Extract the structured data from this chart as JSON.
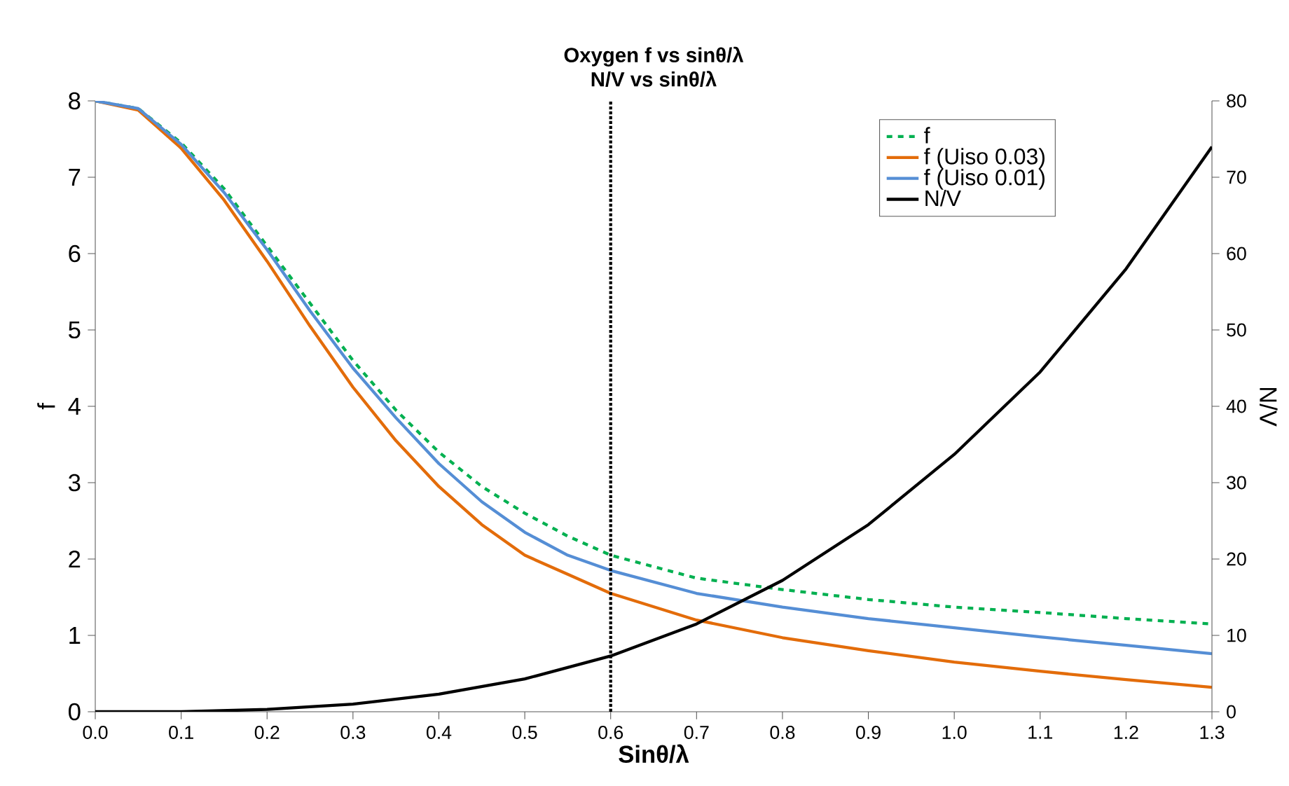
{
  "chart_data": {
    "type": "line",
    "title": "Oxygen f vs sinθ/λ",
    "subtitle": "N/V vs sinθ/λ",
    "xlabel": "Sinθ/λ",
    "ylabel": "f",
    "y2label": "N/V",
    "x": [
      0,
      0.05,
      0.1,
      0.15,
      0.2,
      0.25,
      0.3,
      0.35,
      0.4,
      0.45,
      0.5,
      0.55,
      0.6,
      0.7,
      0.8,
      0.9,
      1.0,
      1.1,
      1.2,
      1.3
    ],
    "series": [
      {
        "name": "f",
        "color": "#00b050",
        "line_style": "dashed",
        "values": [
          8,
          7.9,
          7.45,
          6.85,
          6.1,
          5.35,
          4.6,
          3.95,
          3.4,
          2.95,
          2.6,
          2.3,
          2.05,
          1.75,
          1.6,
          1.47,
          1.37,
          1.3,
          1.22,
          1.15
        ]
      },
      {
        "name": "f (Uiso 0.03)",
        "color": "#e36c0a",
        "values": [
          8,
          7.88,
          7.38,
          6.7,
          5.9,
          5.05,
          4.25,
          3.55,
          2.95,
          2.45,
          2.05,
          1.8,
          1.55,
          1.2,
          0.97,
          0.8,
          0.65,
          0.53,
          0.42,
          0.32
        ]
      },
      {
        "name": "f (Uiso 0.01)",
        "color": "#558ed5",
        "values": [
          8,
          7.9,
          7.43,
          6.8,
          6.05,
          5.25,
          4.5,
          3.85,
          3.25,
          2.75,
          2.35,
          2.05,
          1.85,
          1.55,
          1.37,
          1.22,
          1.1,
          0.98,
          0.87,
          0.76
        ]
      },
      {
        "name": "N/V",
        "color": "#000000",
        "axis": "y2",
        "x": [
          0,
          0.1,
          0.2,
          0.3,
          0.4,
          0.5,
          0.6,
          0.7,
          0.8,
          0.9,
          1.0,
          1.1,
          1.2,
          1.3
        ],
        "values": [
          0,
          0,
          0.3,
          1.0,
          2.3,
          4.3,
          7.3,
          11.5,
          17.2,
          24.5,
          33.7,
          44.5,
          58,
          74
        ]
      }
    ],
    "xlim": [
      0,
      1.3
    ],
    "xticks": [
      {
        "value": 0,
        "label": "0.0"
      },
      0.1,
      0.2,
      0.3,
      0.4,
      0.5,
      0.6,
      0.7,
      0.8,
      0.9,
      {
        "value": 1.0,
        "label": "1.0"
      },
      1.1,
      1.2,
      1.3
    ],
    "ylim": [
      0,
      8
    ],
    "yticks": [
      0,
      1,
      2,
      3,
      4,
      5,
      6,
      7,
      8
    ],
    "y2lim": [
      0,
      80
    ],
    "y2ticks": [
      0,
      10,
      20,
      30,
      40,
      50,
      60,
      70,
      80
    ],
    "ref_lines": [
      {
        "axis": "x",
        "value": 0.6,
        "color": "#000000",
        "line_style": "dotted"
      }
    ],
    "legend": "top right",
    "grid": false
  }
}
